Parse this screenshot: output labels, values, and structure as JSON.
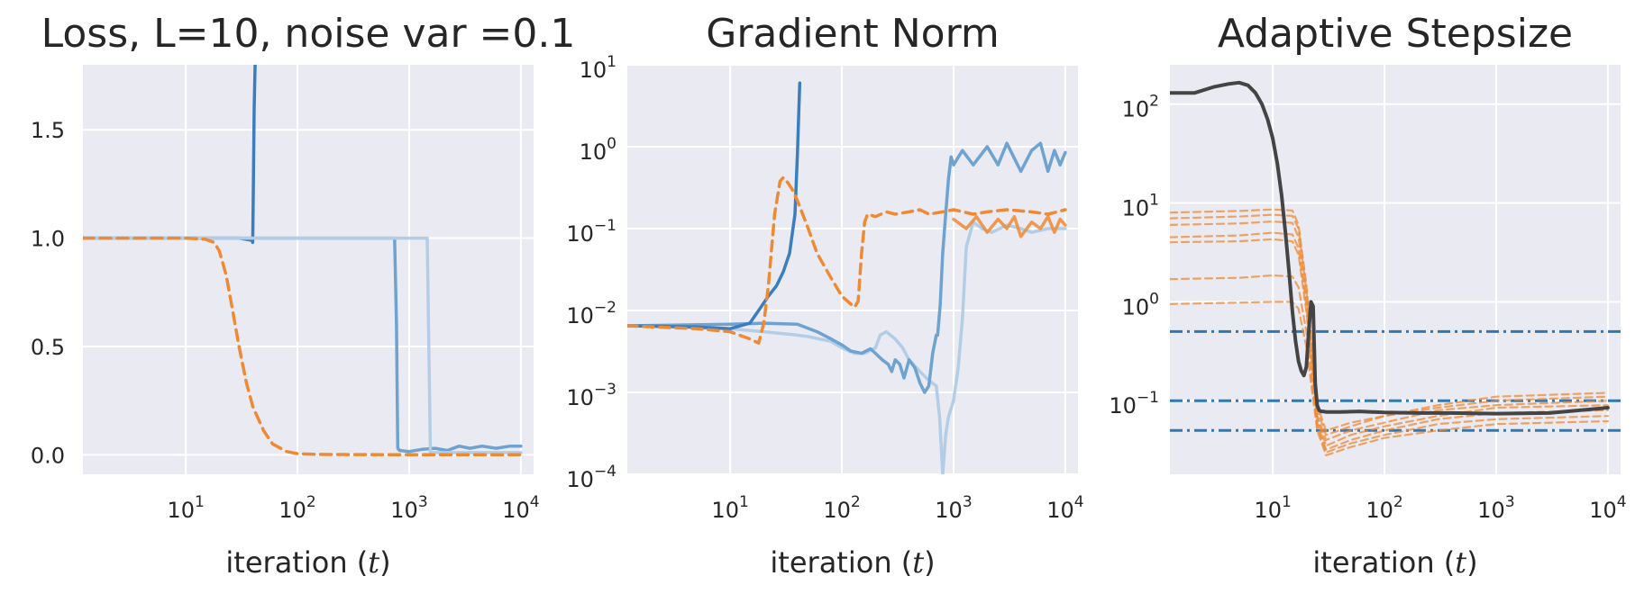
{
  "colors": {
    "background": "#eaeaf2",
    "grid": "#ffffff",
    "blue_dark": "#3a7ebf",
    "blue_mid": "#6da2d1",
    "blue_light": "#b3cde6",
    "orange": "#ee8a33",
    "black": "#444444",
    "hline_blue": "#2f78b4"
  },
  "chart_data": [
    {
      "type": "line",
      "title": "Loss, L=10, noise var =0.1",
      "xlabel_text": "iteration (",
      "xlabel_var": "t",
      "xlabel_close": ")",
      "xscale": "log",
      "xlim": [
        1.2,
        13000
      ],
      "yscale": "linear",
      "ylim": [
        -0.09,
        1.8
      ],
      "yticks": [
        0.0,
        0.5,
        1.0,
        1.5
      ],
      "ytick_labels": [
        "0.0",
        "0.5",
        "1.0",
        "1.5"
      ],
      "xtick_exponents": [
        1,
        2,
        3,
        4
      ],
      "xtick_base": "10",
      "grid": true,
      "series": [
        {
          "color": "#3a7ebf",
          "width": 3.5,
          "dash": "",
          "opacity": 1,
          "x": [
            1.2,
            5,
            10,
            20,
            30,
            39,
            39.8,
            40.2,
            41,
            42
          ],
          "y": [
            1.0,
            1.0,
            1.0,
            1.0,
            1.0,
            0.99,
            0.98,
            1.2,
            1.6,
            1.85
          ]
        },
        {
          "color": "#6da2d1",
          "width": 3.5,
          "dash": "",
          "opacity": 1,
          "x": [
            1.2,
            10,
            100,
            500,
            740,
            770,
            790,
            820,
            1000,
            1300,
            1700,
            2200,
            2800,
            3500,
            4500,
            6000,
            8000,
            10000
          ],
          "y": [
            1.0,
            1.0,
            1.0,
            1.0,
            1.0,
            0.6,
            0.03,
            0.02,
            0.015,
            0.025,
            0.03,
            0.02,
            0.04,
            0.03,
            0.04,
            0.03,
            0.04,
            0.04
          ]
        },
        {
          "color": "#b3cde6",
          "width": 3.5,
          "dash": "",
          "opacity": 1,
          "x": [
            1.2,
            10,
            100,
            1000,
            1450,
            1500,
            1550,
            1650,
            2000,
            3000,
            5000,
            10000
          ],
          "y": [
            1.0,
            1.0,
            1.0,
            1.0,
            1.0,
            0.5,
            0.01,
            0.01,
            0.01,
            0.01,
            0.01,
            0.01
          ]
        },
        {
          "color": "#ee8a33",
          "width": 3.5,
          "dash": "12,7",
          "opacity": 1,
          "x": [
            1.2,
            5,
            10,
            15,
            18,
            20,
            23,
            26,
            30,
            35,
            40,
            50,
            60,
            80,
            100,
            150,
            300,
            1000,
            10000
          ],
          "y": [
            1.0,
            1.0,
            1.0,
            0.995,
            0.98,
            0.94,
            0.83,
            0.68,
            0.5,
            0.33,
            0.22,
            0.11,
            0.05,
            0.015,
            0.005,
            0.002,
            0.001,
            0.0,
            0.0
          ]
        }
      ]
    },
    {
      "type": "line",
      "title": "Gradient Norm",
      "xlabel_text": "iteration (",
      "xlabel_var": "t",
      "xlabel_close": ")",
      "xscale": "log",
      "xlim": [
        1.2,
        13000
      ],
      "yscale": "log",
      "ylim": [
        0.0001,
        10
      ],
      "ytick_exponents": [
        -4,
        -3,
        -2,
        -1,
        0,
        1
      ],
      "ytick_base": "10",
      "xtick_exponents": [
        1,
        2,
        3,
        4
      ],
      "xtick_base": "10",
      "grid": true,
      "series": [
        {
          "color": "#b3cde6",
          "width": 3.5,
          "dash": "",
          "opacity": 1,
          "x": [
            1.2,
            10,
            20,
            30,
            40,
            50,
            80,
            100,
            130,
            160,
            200,
            220,
            250,
            300,
            350,
            400,
            500,
            600,
            700,
            750,
            800,
            850,
            900,
            1000,
            1100,
            1200,
            1300,
            1500,
            1800,
            2200,
            3000,
            4000,
            5000,
            7000,
            10000
          ],
          "y": [
            0.0065,
            0.006,
            0.0055,
            0.0052,
            0.005,
            0.0048,
            0.0042,
            0.0035,
            0.003,
            0.003,
            0.0035,
            0.005,
            0.0055,
            0.0045,
            0.0035,
            0.0025,
            0.0018,
            0.0014,
            0.0012,
            0.0005,
            0.0001,
            0.0003,
            0.0005,
            0.0008,
            0.002,
            0.008,
            0.06,
            0.12,
            0.1,
            0.09,
            0.11,
            0.1,
            0.09,
            0.1,
            0.1
          ]
        },
        {
          "color": "#6da2d1",
          "width": 3.5,
          "dash": "",
          "opacity": 1,
          "x": [
            1.2,
            10,
            20,
            40,
            60,
            80,
            100,
            120,
            150,
            180,
            200,
            230,
            260,
            280,
            300,
            330,
            360,
            400,
            450,
            500,
            550,
            600,
            650,
            700,
            720,
            760,
            800,
            850,
            900,
            950,
            1000,
            1200,
            1500,
            2000,
            2500,
            3000,
            4000,
            5000,
            6000,
            7000,
            8000,
            9000,
            10000
          ],
          "y": [
            0.0065,
            0.0068,
            0.007,
            0.0068,
            0.0055,
            0.0045,
            0.0038,
            0.0032,
            0.003,
            0.0034,
            0.003,
            0.0025,
            0.0022,
            0.0018,
            0.0025,
            0.0022,
            0.0015,
            0.0025,
            0.002,
            0.0013,
            0.001,
            0.0012,
            0.003,
            0.005,
            0.005,
            0.012,
            0.05,
            0.15,
            0.4,
            0.75,
            0.6,
            0.9,
            0.6,
            1.0,
            0.6,
            1.1,
            0.5,
            0.9,
            1.1,
            0.5,
            0.9,
            0.6,
            0.85
          ]
        },
        {
          "color": "#3a7ebf",
          "width": 3.5,
          "dash": "",
          "opacity": 1,
          "x": [
            1.2,
            5,
            10,
            15,
            18,
            22,
            26,
            30,
            34,
            38,
            40,
            42
          ],
          "y": [
            0.0065,
            0.0063,
            0.006,
            0.007,
            0.01,
            0.015,
            0.02,
            0.03,
            0.05,
            0.15,
            0.8,
            6
          ]
        },
        {
          "color": "#ee8a33",
          "width": 3.5,
          "dash": "11,7",
          "opacity": 1,
          "x": [
            1.2,
            5,
            10,
            15,
            18,
            20,
            22,
            25,
            28,
            30,
            33,
            36,
            40,
            50,
            60,
            80,
            100,
            120,
            130,
            140,
            150,
            160,
            170,
            200,
            250,
            300,
            400,
            500,
            600,
            800,
            1000,
            1500,
            2000,
            3000,
            5000,
            7000,
            10000
          ],
          "y": [
            0.0065,
            0.006,
            0.0055,
            0.0045,
            0.004,
            0.007,
            0.02,
            0.15,
            0.38,
            0.42,
            0.36,
            0.3,
            0.22,
            0.1,
            0.05,
            0.025,
            0.015,
            0.012,
            0.011,
            0.013,
            0.05,
            0.12,
            0.15,
            0.14,
            0.16,
            0.15,
            0.16,
            0.17,
            0.15,
            0.16,
            0.17,
            0.15,
            0.16,
            0.17,
            0.16,
            0.15,
            0.17
          ]
        },
        {
          "color": "#ee8a33",
          "width": 3.5,
          "dash": "",
          "opacity": 0.85,
          "x": [
            1000,
            1300,
            1600,
            2000,
            2500,
            3000,
            3500,
            4000,
            5000,
            6000,
            7000,
            8000,
            9000,
            10000
          ],
          "y": [
            0.13,
            0.1,
            0.14,
            0.09,
            0.13,
            0.1,
            0.14,
            0.08,
            0.12,
            0.1,
            0.14,
            0.09,
            0.13,
            0.11
          ]
        }
      ]
    },
    {
      "type": "line",
      "title": "Adaptive Stepsize",
      "xlabel_text": "iteration (",
      "xlabel_var": "t",
      "xlabel_close": ")",
      "xscale": "log",
      "xlim": [
        1.2,
        13000
      ],
      "yscale": "log",
      "ylim": [
        0.018,
        250
      ],
      "ytick_exponents": [
        -1,
        0,
        1,
        2
      ],
      "ytick_base": "10",
      "xtick_exponents": [
        1,
        2,
        3,
        4
      ],
      "xtick_base": "10",
      "grid": true,
      "hlines": [
        {
          "y": 0.5,
          "color": "#2f78b4",
          "width": 3,
          "dash": "14,5,3,5"
        },
        {
          "y": 0.1,
          "color": "#2f78b4",
          "width": 3,
          "dash": "14,5,3,5"
        },
        {
          "y": 0.05,
          "color": "#2f78b4",
          "width": 3,
          "dash": "14,5,3,5"
        }
      ],
      "series": [
        {
          "color": "#ee8a33",
          "width": 2.2,
          "dash": "8,5",
          "opacity": 0.75,
          "x": [
            1.2,
            5,
            10,
            15,
            17,
            20,
            25,
            30,
            50,
            100,
            300,
            1000,
            10000
          ],
          "y": [
            8.0,
            8.3,
            8.6,
            8.4,
            6.0,
            1.5,
            0.09,
            0.05,
            0.06,
            0.07,
            0.09,
            0.11,
            0.12
          ]
        },
        {
          "color": "#ee8a33",
          "width": 2.2,
          "dash": "8,5",
          "opacity": 0.75,
          "x": [
            1.2,
            5,
            10,
            15,
            17,
            20,
            25,
            30,
            50,
            100,
            300,
            1000,
            10000
          ],
          "y": [
            7.0,
            7.3,
            7.6,
            7.4,
            5.5,
            1.3,
            0.08,
            0.045,
            0.055,
            0.07,
            0.085,
            0.1,
            0.11
          ]
        },
        {
          "color": "#ee8a33",
          "width": 2.2,
          "dash": "8,5",
          "opacity": 0.75,
          "x": [
            1.2,
            5,
            10,
            15,
            17,
            20,
            25,
            30,
            50,
            100,
            300,
            1000,
            10000
          ],
          "y": [
            6.0,
            6.2,
            6.5,
            6.3,
            4.5,
            1.1,
            0.07,
            0.04,
            0.05,
            0.06,
            0.08,
            0.09,
            0.1
          ]
        },
        {
          "color": "#ee8a33",
          "width": 2.2,
          "dash": "8,5",
          "opacity": 0.75,
          "x": [
            1.2,
            5,
            10,
            15,
            17,
            20,
            25,
            30,
            50,
            100,
            300,
            1000,
            10000
          ],
          "y": [
            4.5,
            4.7,
            5.0,
            4.8,
            3.5,
            0.9,
            0.065,
            0.035,
            0.045,
            0.055,
            0.07,
            0.085,
            0.09
          ]
        },
        {
          "color": "#ee8a33",
          "width": 2.2,
          "dash": "8,5",
          "opacity": 0.75,
          "x": [
            1.2,
            5,
            10,
            15,
            17,
            20,
            25,
            30,
            50,
            100,
            300,
            1000,
            10000
          ],
          "y": [
            4.0,
            4.1,
            4.3,
            4.1,
            3.0,
            0.8,
            0.06,
            0.032,
            0.04,
            0.05,
            0.065,
            0.075,
            0.08
          ]
        },
        {
          "color": "#ee8a33",
          "width": 2.2,
          "dash": "8,5",
          "opacity": 0.75,
          "x": [
            1.2,
            5,
            10,
            15,
            17,
            20,
            25,
            30,
            50,
            100,
            300,
            1000,
            10000
          ],
          "y": [
            1.7,
            1.75,
            1.85,
            1.8,
            1.4,
            0.5,
            0.055,
            0.03,
            0.037,
            0.045,
            0.058,
            0.065,
            0.07
          ]
        },
        {
          "color": "#ee8a33",
          "width": 2.2,
          "dash": "8,5",
          "opacity": 0.75,
          "x": [
            1.2,
            5,
            10,
            15,
            17,
            20,
            25,
            30,
            50,
            100,
            300,
            1000,
            10000
          ],
          "y": [
            0.95,
            0.98,
            1.0,
            1.0,
            0.85,
            0.35,
            0.05,
            0.028,
            0.034,
            0.042,
            0.05,
            0.058,
            0.062
          ]
        },
        {
          "color": "#444444",
          "width": 4,
          "dash": "",
          "opacity": 1,
          "x": [
            1.2,
            2,
            3,
            4,
            5,
            6,
            7,
            8,
            9,
            10,
            11,
            12,
            13,
            14,
            15,
            16,
            17,
            18,
            19,
            20,
            21,
            22,
            23,
            24,
            25,
            26,
            27,
            28,
            30,
            40,
            60,
            100,
            200,
            400,
            1000,
            3000,
            10000
          ],
          "y": [
            130,
            130,
            150,
            160,
            165,
            155,
            130,
            100,
            70,
            45,
            25,
            12,
            5,
            2,
            0.8,
            0.4,
            0.25,
            0.2,
            0.18,
            0.22,
            0.5,
            1.0,
            0.9,
            0.15,
            0.09,
            0.08,
            0.078,
            0.078,
            0.077,
            0.077,
            0.078,
            0.076,
            0.075,
            0.075,
            0.074,
            0.075,
            0.085
          ]
        }
      ]
    }
  ]
}
